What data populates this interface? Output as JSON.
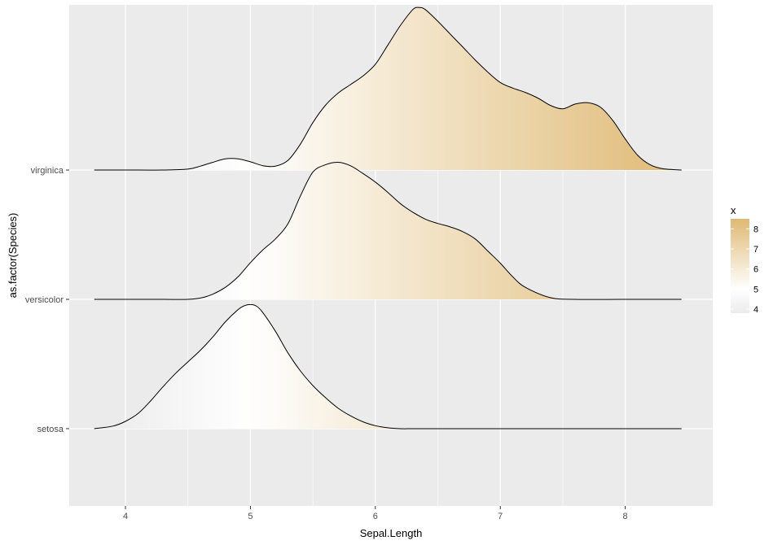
{
  "chart_data": {
    "type": "area",
    "subtype": "ridgeline density (fill gradient by x)",
    "xlabel": "Sepal.Length",
    "ylabel": "as.factor(Species)",
    "xlim": [
      3.55,
      8.7
    ],
    "x_ticks": [
      4,
      5,
      6,
      7,
      8
    ],
    "x_tick_labels": [
      "4",
      "5",
      "6",
      "7",
      "8"
    ],
    "categories": [
      "setosa",
      "versicolor",
      "virginica"
    ],
    "grid": true,
    "legend": {
      "title": "x",
      "position": "right",
      "ticks": [
        4,
        5,
        6,
        7,
        8
      ],
      "tick_labels": [
        "4",
        "5",
        "6",
        "7",
        "8"
      ],
      "range": [
        3.8,
        8.5
      ],
      "low_color": "#ebebeb",
      "mid_color": "#ffffff",
      "high_color": "#dfb973",
      "midpoint": 5
    },
    "colors": {
      "panel": "#ebebeb",
      "grid": "#ffffff",
      "outline": "#000000"
    },
    "series": [
      {
        "name": "setosa",
        "x": [
          3.75,
          3.9,
          4.0,
          4.1,
          4.2,
          4.3,
          4.4,
          4.5,
          4.6,
          4.7,
          4.8,
          4.9,
          4.95,
          5.0,
          5.05,
          5.1,
          5.2,
          5.3,
          5.4,
          5.5,
          5.6,
          5.7,
          5.8,
          5.9,
          6.0,
          6.1,
          6.2,
          6.3,
          6.5,
          7.0,
          7.5,
          8.0,
          8.45
        ],
        "y": [
          0.0,
          0.06,
          0.17,
          0.35,
          0.64,
          0.97,
          1.28,
          1.55,
          1.82,
          2.13,
          2.48,
          2.76,
          2.85,
          2.88,
          2.84,
          2.69,
          2.26,
          1.76,
          1.34,
          1.0,
          0.72,
          0.48,
          0.3,
          0.16,
          0.07,
          0.02,
          0.0,
          0.0,
          0.0,
          0.0,
          0.0,
          0.0,
          0.0
        ]
      },
      {
        "name": "versicolor",
        "x": [
          3.75,
          4.0,
          4.3,
          4.5,
          4.6,
          4.7,
          4.8,
          4.9,
          5.0,
          5.1,
          5.2,
          5.3,
          5.4,
          5.5,
          5.6,
          5.7,
          5.8,
          5.9,
          6.0,
          6.1,
          6.2,
          6.3,
          6.4,
          6.5,
          6.6,
          6.7,
          6.8,
          6.9,
          7.0,
          7.1,
          7.2,
          7.4,
          7.6,
          8.0,
          8.45
        ],
        "y": [
          0.0,
          0.0,
          0.0,
          0.0,
          0.03,
          0.12,
          0.28,
          0.52,
          0.85,
          1.15,
          1.4,
          1.75,
          2.4,
          2.95,
          3.12,
          3.18,
          3.1,
          2.92,
          2.72,
          2.48,
          2.22,
          2.02,
          1.86,
          1.76,
          1.68,
          1.57,
          1.4,
          1.12,
          0.84,
          0.52,
          0.28,
          0.04,
          0.0,
          0.0,
          0.0
        ]
      },
      {
        "name": "virginica",
        "x": [
          3.75,
          4.0,
          4.3,
          4.5,
          4.6,
          4.7,
          4.8,
          4.9,
          5.0,
          5.1,
          5.2,
          5.3,
          5.4,
          5.5,
          5.6,
          5.7,
          5.8,
          5.9,
          6.0,
          6.1,
          6.2,
          6.3,
          6.35,
          6.4,
          6.5,
          6.6,
          6.7,
          6.8,
          6.9,
          7.0,
          7.1,
          7.2,
          7.3,
          7.4,
          7.5,
          7.6,
          7.7,
          7.8,
          7.9,
          8.0,
          8.1,
          8.2,
          8.3,
          8.45
        ],
        "y": [
          0.0,
          0.0,
          0.0,
          0.02,
          0.09,
          0.18,
          0.26,
          0.26,
          0.19,
          0.1,
          0.09,
          0.22,
          0.6,
          1.1,
          1.5,
          1.78,
          1.98,
          2.18,
          2.45,
          2.9,
          3.35,
          3.72,
          3.77,
          3.72,
          3.45,
          3.15,
          2.85,
          2.55,
          2.27,
          2.03,
          1.9,
          1.8,
          1.67,
          1.5,
          1.42,
          1.53,
          1.56,
          1.46,
          1.15,
          0.72,
          0.34,
          0.12,
          0.03,
          0.0
        ]
      }
    ]
  }
}
